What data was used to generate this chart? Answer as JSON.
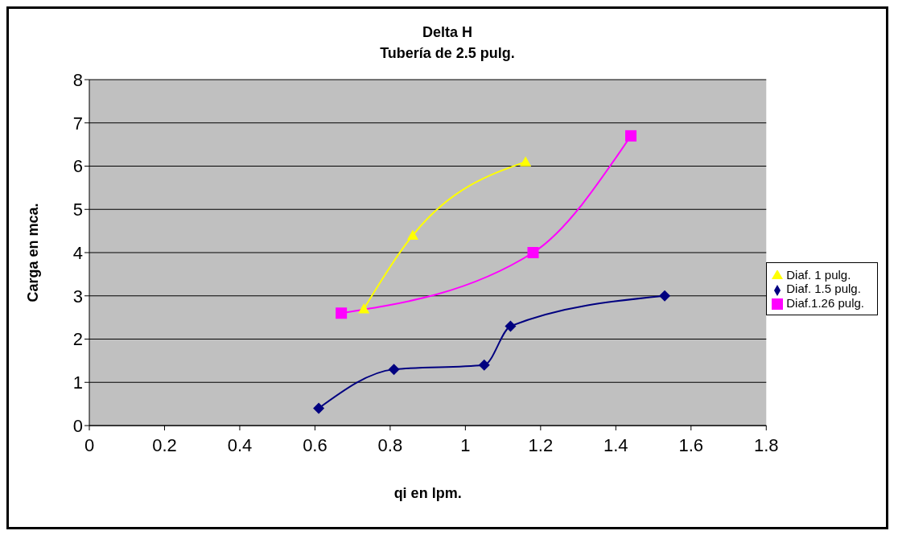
{
  "chart_data": {
    "type": "line",
    "title": "Delta H",
    "subtitle": "Tubería de 2.5 pulg.",
    "xlabel": "qi en lpm.",
    "ylabel": "Carga en mca.",
    "series": [
      {
        "name": "Diaf. 1.5 pulg.",
        "color": "#000080",
        "marker": "diamond",
        "x": [
          0.61,
          0.81,
          1.05,
          1.12,
          1.53
        ],
        "values": [
          0.4,
          1.3,
          1.4,
          2.3,
          3.0
        ]
      },
      {
        "name": "Diaf.1.26 pulg.",
        "color": "#ff00ff",
        "marker": "square",
        "x": [
          0.67,
          1.18,
          1.44
        ],
        "values": [
          2.6,
          4.0,
          6.7
        ]
      },
      {
        "name": "Diaf. 1 pulg.",
        "color": "#ffff00",
        "marker": "triangle",
        "x": [
          0.73,
          0.86,
          1.16
        ],
        "values": [
          2.7,
          4.4,
          6.1
        ]
      }
    ],
    "xlim": [
      0,
      1.8
    ],
    "xticks": [
      0,
      0.2,
      0.4,
      0.6,
      0.8,
      1,
      1.2,
      1.4,
      1.6,
      1.8
    ],
    "ylim": [
      0,
      8
    ],
    "yticks": [
      0,
      1,
      2,
      3,
      4,
      5,
      6,
      7,
      8
    ],
    "grid": "y",
    "legend": "right"
  }
}
